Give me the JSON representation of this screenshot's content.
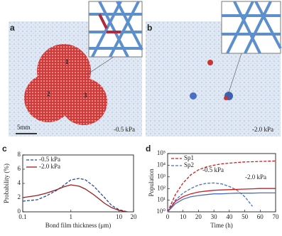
{
  "panels": {
    "a": {
      "label": "a",
      "markers": [
        "1",
        "2",
        "3"
      ],
      "scale": "5mm",
      "pressure": "-0.5 kPa"
    },
    "b": {
      "label": "b",
      "pressure": "-2.0 kPa"
    },
    "c": {
      "label": "c"
    },
    "d": {
      "label": "d"
    }
  },
  "chart_data": [
    {
      "type": "line",
      "xlabel": "Bond film thickness (μm)",
      "ylabel": "Probability (%)",
      "xscale": "log",
      "xlim": [
        0.1,
        20
      ],
      "xticks": [
        0.1,
        1,
        10,
        20
      ],
      "ylim": [
        0,
        8
      ],
      "yticks": [
        0,
        2,
        4,
        6,
        8
      ],
      "legend": "upper left",
      "x": [
        0.1,
        0.2,
        0.3,
        0.5,
        0.7,
        1,
        1.5,
        2,
        3,
        5,
        7,
        10,
        15
      ],
      "series": [
        {
          "name": "-0.5 kPa",
          "color": "#2b4a9b",
          "dash": true,
          "values": [
            1.5,
            1.7,
            2.2,
            3,
            3.7,
            4.5,
            4.7,
            4.5,
            3.6,
            2,
            0.9,
            0.3,
            0
          ]
        },
        {
          "name": "-2.0 kPa",
          "color": "#a01c1c",
          "dash": false,
          "values": [
            2,
            2.3,
            2.6,
            3.1,
            3.5,
            3.8,
            3.6,
            3.2,
            2.4,
            1.2,
            0.6,
            0.2,
            0
          ]
        }
      ]
    },
    {
      "type": "line",
      "xlabel": "Time (h)",
      "ylabel": "Population",
      "yscale": "log",
      "xlim": [
        0,
        70
      ],
      "xticks": [
        0,
        10,
        20,
        30,
        40,
        50,
        60,
        70
      ],
      "ylim": [
        1,
        100000
      ],
      "yticks": [
        {
          "value": 1,
          "label": "10⁰"
        },
        {
          "value": 10,
          "label": "10¹"
        },
        {
          "value": 100,
          "label": "10²"
        },
        {
          "value": 1000,
          "label": "10³"
        },
        {
          "value": 10000,
          "label": "10⁴"
        },
        {
          "value": 100000,
          "label": "10⁵"
        }
      ],
      "legend": "upper left",
      "annotations": [
        "-0.5 kPa",
        "-2.0 kPa"
      ],
      "x": [
        0,
        5,
        10,
        15,
        20,
        25,
        30,
        35,
        40,
        45,
        50,
        55,
        60,
        65,
        70
      ],
      "series": [
        {
          "name": "Sp1",
          "color": "#d7191c",
          "dash": true,
          "values": [
            1,
            30,
            300,
            1500,
            4000,
            7000,
            10000,
            13000,
            15000,
            17000,
            19000,
            20000,
            21000,
            22000,
            23000
          ]
        },
        {
          "name": "Sp2",
          "color": "#4a6fc4",
          "dash": true,
          "values": [
            1,
            10,
            40,
            100,
            200,
            280,
            300,
            250,
            150,
            70,
            20,
            3,
            null,
            null,
            null
          ]
        },
        {
          "color": "#d7191c",
          "dash": false,
          "values": [
            1,
            8,
            20,
            35,
            50,
            60,
            70,
            75,
            80,
            85,
            90,
            95,
            100,
            100,
            100
          ]
        },
        {
          "color": "#4a6fc4",
          "dash": false,
          "values": [
            1,
            5,
            12,
            20,
            25,
            30,
            35,
            35,
            38,
            40,
            40,
            40,
            42,
            42,
            42
          ]
        }
      ]
    }
  ]
}
